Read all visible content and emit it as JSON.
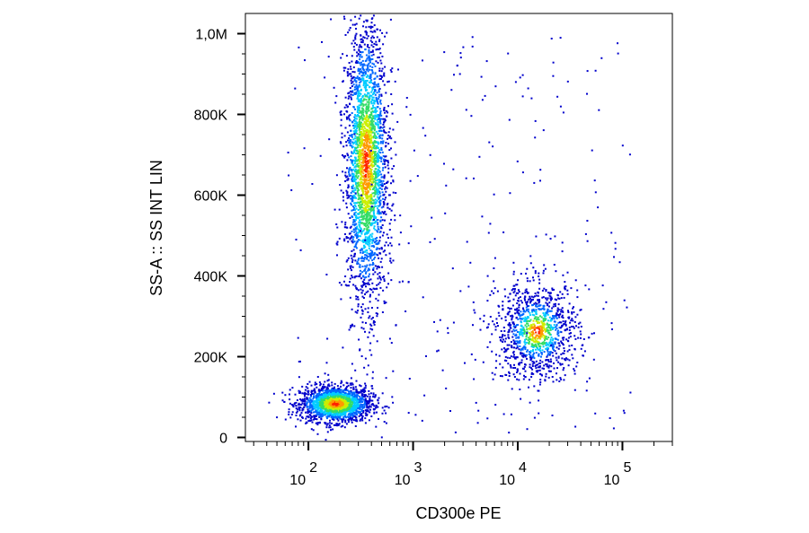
{
  "chart_data": {
    "type": "scatter",
    "subtype": "flow-cytometry-density-dot-plot",
    "xlabel": "CD300e PE",
    "ylabel": "SS-A :: SS INT LIN",
    "x_scale": "log",
    "y_scale": "linear",
    "xlim": [
      25,
      300000
    ],
    "ylim": [
      -10000,
      1050000
    ],
    "x_ticks": [
      {
        "value": 100,
        "base": "10",
        "exp": "2"
      },
      {
        "value": 1000,
        "base": "10",
        "exp": "3"
      },
      {
        "value": 10000,
        "base": "10",
        "exp": "4"
      },
      {
        "value": 100000,
        "base": "10",
        "exp": "5"
      }
    ],
    "y_ticks": [
      {
        "value": 0,
        "label": "0"
      },
      {
        "value": 200000,
        "label": "200K"
      },
      {
        "value": 400000,
        "label": "400K"
      },
      {
        "value": 600000,
        "label": "600K"
      },
      {
        "value": 800000,
        "label": "800K"
      },
      {
        "value": 1000000,
        "label": "1,0M"
      }
    ],
    "grid": false,
    "legend": "none",
    "color_scale": [
      "#0000cc",
      "#0066ff",
      "#00ccff",
      "#33dd66",
      "#ccee00",
      "#ff9900",
      "#ff2200"
    ],
    "populations": [
      {
        "x_center": 180,
        "y_center": 85000,
        "log_sd_x": 0.17,
        "sd_y": 22000,
        "density": "very high"
      },
      {
        "x_center": 350,
        "y_center": 680000,
        "log_sd_x": 0.1,
        "sd_y": 170000,
        "density": "high"
      },
      {
        "x_center": 15000,
        "y_center": 265000,
        "log_sd_x": 0.2,
        "sd_y": 60000,
        "density": "medium"
      }
    ]
  }
}
